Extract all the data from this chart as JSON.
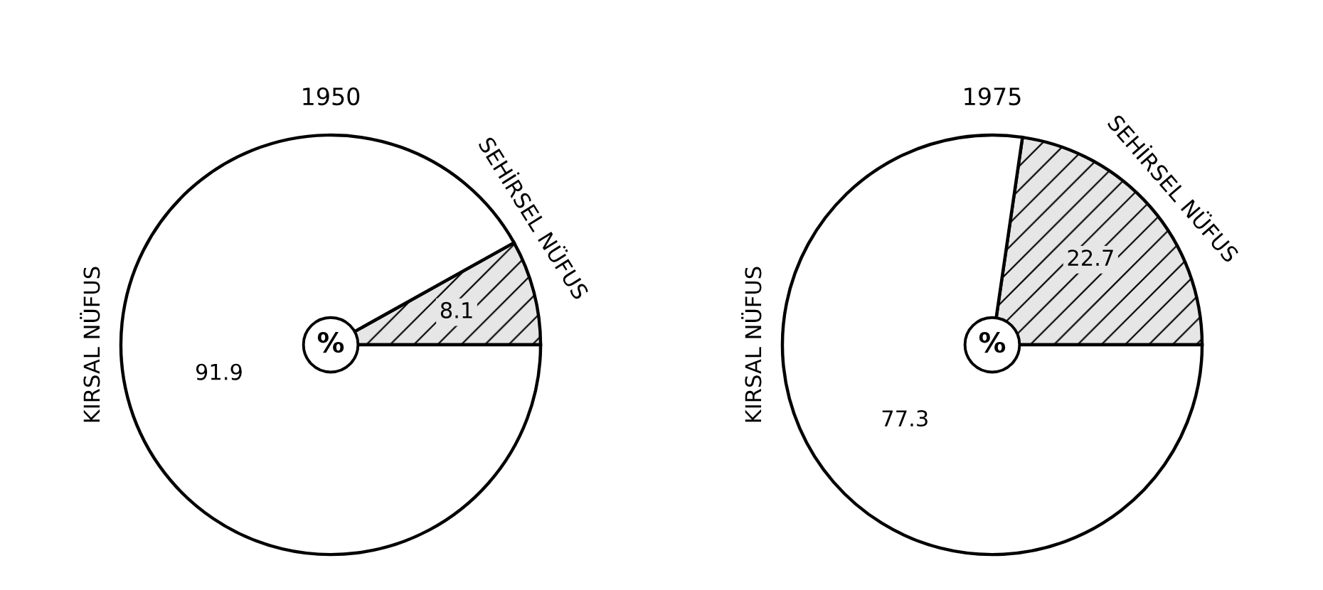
{
  "chart_data": [
    {
      "type": "pie",
      "title": "1950",
      "categories": [
        "SEHİRSEL NÜFUS",
        "KIRSAL NÜFUS"
      ],
      "values": [
        8.1,
        91.9
      ],
      "colors": [
        "#e6e6e6",
        "#ffffff"
      ],
      "data_labels": true,
      "annotations": [
        "%"
      ]
    },
    {
      "type": "pie",
      "title": "1975",
      "categories": [
        "SEHİRSEL NÜFUS",
        "KIRSAL NÜFUS"
      ],
      "values": [
        22.7,
        77.3
      ],
      "colors": [
        "#e6e6e6",
        "#ffffff"
      ],
      "data_labels": true,
      "annotations": [
        "%"
      ]
    }
  ]
}
